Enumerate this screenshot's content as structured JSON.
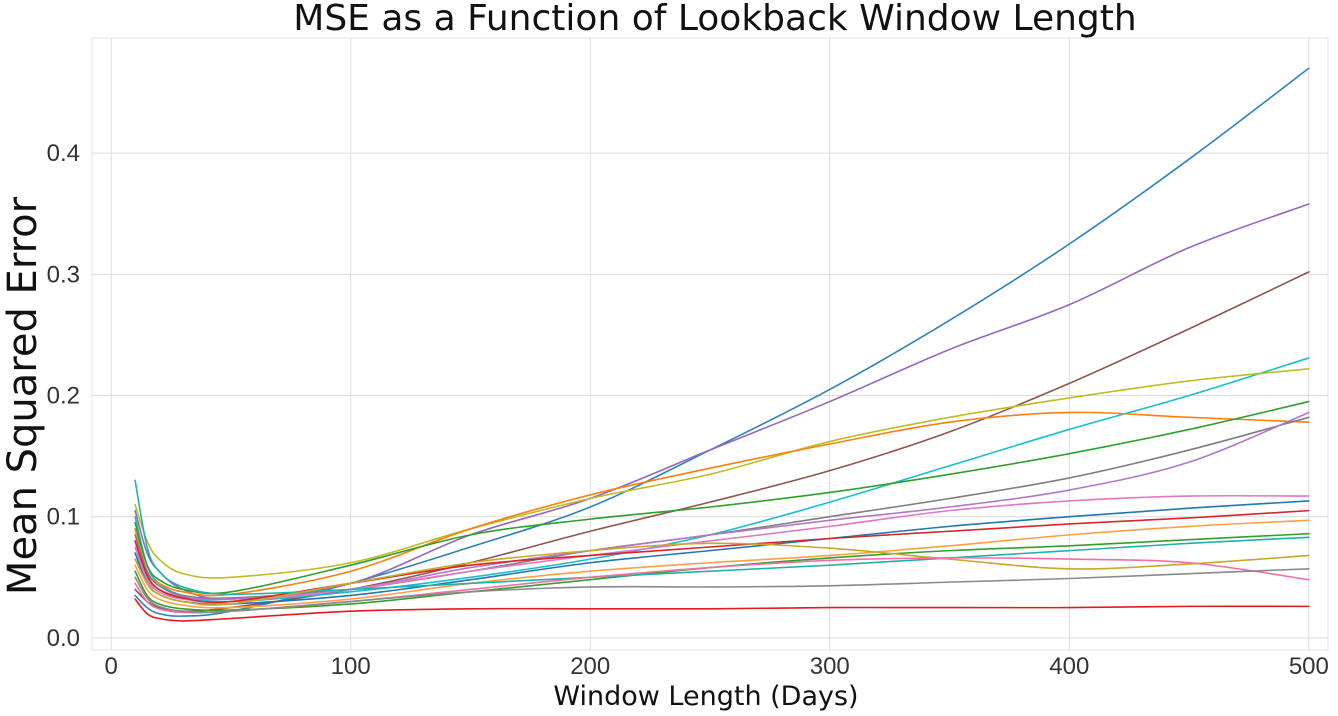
{
  "chart_data": {
    "type": "line",
    "title": "MSE as a Function of Lookback Window Length",
    "xlabel": "Window Length (Days)",
    "ylabel": "Mean Squared Error",
    "xlim": [
      -8,
      508
    ],
    "ylim": [
      -0.01,
      0.495
    ],
    "xticks": [
      0,
      100,
      200,
      300,
      400,
      500
    ],
    "yticks": [
      0.0,
      0.1,
      0.2,
      0.3,
      0.4
    ],
    "xtick_labels": [
      "0",
      "100",
      "200",
      "300",
      "400",
      "500"
    ],
    "ytick_labels": [
      "0.0",
      "0.1",
      "0.2",
      "0.3",
      "0.4"
    ],
    "grid": true,
    "legend": "none",
    "series": [
      {
        "color": "#2b83ba",
        "x": [
          10,
          15,
          20,
          30,
          50,
          100,
          150,
          200,
          250,
          300,
          350,
          400,
          450,
          500
        ],
        "y": [
          0.035,
          0.025,
          0.02,
          0.018,
          0.022,
          0.045,
          0.075,
          0.108,
          0.155,
          0.205,
          0.262,
          0.325,
          0.395,
          0.47
        ]
      },
      {
        "color": "#9467bd",
        "x": [
          10,
          15,
          20,
          30,
          50,
          100,
          150,
          200,
          250,
          300,
          350,
          400,
          450,
          500
        ],
        "y": [
          0.105,
          0.07,
          0.055,
          0.04,
          0.032,
          0.045,
          0.085,
          0.115,
          0.155,
          0.195,
          0.238,
          0.275,
          0.322,
          0.358
        ]
      },
      {
        "color": "#8c564b",
        "x": [
          10,
          15,
          20,
          30,
          50,
          100,
          150,
          200,
          250,
          300,
          350,
          400,
          450,
          500
        ],
        "y": [
          0.04,
          0.03,
          0.025,
          0.022,
          0.025,
          0.04,
          0.062,
          0.088,
          0.112,
          0.138,
          0.17,
          0.21,
          0.255,
          0.302
        ]
      },
      {
        "color": "#17becf",
        "x": [
          10,
          15,
          20,
          30,
          50,
          100,
          150,
          200,
          250,
          300,
          350,
          400,
          450,
          500
        ],
        "y": [
          0.1,
          0.06,
          0.045,
          0.035,
          0.03,
          0.038,
          0.05,
          0.065,
          0.085,
          0.112,
          0.142,
          0.172,
          0.2,
          0.231
        ]
      },
      {
        "color": "#bcbd22",
        "x": [
          10,
          15,
          20,
          30,
          50,
          100,
          150,
          200,
          250,
          300,
          350,
          400,
          450,
          500
        ],
        "y": [
          0.11,
          0.08,
          0.065,
          0.053,
          0.05,
          0.062,
          0.09,
          0.115,
          0.135,
          0.162,
          0.182,
          0.198,
          0.212,
          0.222
        ]
      },
      {
        "color": "#ff7f0e",
        "x": [
          10,
          15,
          20,
          30,
          50,
          100,
          150,
          200,
          250,
          300,
          350,
          400,
          450,
          500
        ],
        "y": [
          0.09,
          0.055,
          0.045,
          0.038,
          0.036,
          0.055,
          0.09,
          0.118,
          0.14,
          0.16,
          0.178,
          0.186,
          0.182,
          0.178
        ]
      },
      {
        "color": "#2ca02c",
        "x": [
          10,
          15,
          20,
          30,
          50,
          100,
          150,
          200,
          250,
          300,
          350,
          400,
          450,
          500
        ],
        "y": [
          0.095,
          0.06,
          0.048,
          0.04,
          0.038,
          0.06,
          0.085,
          0.098,
          0.108,
          0.12,
          0.135,
          0.152,
          0.172,
          0.195
        ]
      },
      {
        "color": "#7f7f7f",
        "x": [
          10,
          15,
          20,
          30,
          50,
          100,
          150,
          200,
          250,
          300,
          350,
          400,
          450,
          500
        ],
        "y": [
          0.085,
          0.055,
          0.043,
          0.035,
          0.033,
          0.04,
          0.055,
          0.072,
          0.085,
          0.1,
          0.115,
          0.132,
          0.155,
          0.182
        ]
      },
      {
        "color": "#b377c9",
        "x": [
          10,
          15,
          20,
          30,
          50,
          100,
          150,
          200,
          250,
          300,
          350,
          400,
          450,
          500
        ],
        "y": [
          0.08,
          0.05,
          0.04,
          0.034,
          0.032,
          0.04,
          0.058,
          0.072,
          0.085,
          0.097,
          0.108,
          0.122,
          0.145,
          0.186
        ]
      },
      {
        "color": "#e377c2",
        "x": [
          10,
          15,
          20,
          30,
          50,
          100,
          150,
          200,
          250,
          300,
          350,
          400,
          450,
          500
        ],
        "y": [
          0.075,
          0.048,
          0.038,
          0.032,
          0.03,
          0.04,
          0.055,
          0.068,
          0.08,
          0.092,
          0.105,
          0.113,
          0.117,
          0.117
        ]
      },
      {
        "color": "#1f77b4",
        "x": [
          10,
          15,
          20,
          30,
          50,
          100,
          150,
          200,
          250,
          300,
          350,
          400,
          450,
          500
        ],
        "y": [
          0.07,
          0.045,
          0.036,
          0.03,
          0.028,
          0.035,
          0.048,
          0.062,
          0.072,
          0.082,
          0.092,
          0.1,
          0.107,
          0.113
        ]
      },
      {
        "color": "#d62728",
        "x": [
          10,
          15,
          20,
          30,
          50,
          100,
          150,
          200,
          250,
          300,
          350,
          400,
          450,
          500
        ],
        "y": [
          0.08,
          0.052,
          0.04,
          0.033,
          0.03,
          0.045,
          0.06,
          0.068,
          0.075,
          0.082,
          0.088,
          0.094,
          0.099,
          0.105
        ]
      },
      {
        "color": "#ff9f43",
        "x": [
          10,
          15,
          20,
          30,
          50,
          100,
          150,
          200,
          250,
          300,
          350,
          400,
          450,
          500
        ],
        "y": [
          0.06,
          0.04,
          0.032,
          0.027,
          0.025,
          0.032,
          0.045,
          0.055,
          0.062,
          0.068,
          0.076,
          0.085,
          0.092,
          0.097
        ]
      },
      {
        "color": "#33a02c",
        "x": [
          10,
          15,
          20,
          30,
          50,
          100,
          150,
          200,
          250,
          300,
          350,
          400,
          450,
          500
        ],
        "y": [
          0.055,
          0.035,
          0.028,
          0.024,
          0.023,
          0.028,
          0.038,
          0.048,
          0.058,
          0.066,
          0.072,
          0.076,
          0.081,
          0.086
        ]
      },
      {
        "color": "#20b2aa",
        "x": [
          10,
          15,
          20,
          30,
          50,
          100,
          150,
          200,
          250,
          300,
          350,
          400,
          450,
          500
        ],
        "y": [
          0.13,
          0.075,
          0.055,
          0.042,
          0.036,
          0.04,
          0.045,
          0.05,
          0.055,
          0.06,
          0.066,
          0.072,
          0.078,
          0.083
        ]
      },
      {
        "color": "#c7a82b",
        "x": [
          10,
          15,
          20,
          30,
          50,
          100,
          150,
          200,
          250,
          300,
          350,
          400,
          450,
          500
        ],
        "y": [
          0.065,
          0.045,
          0.036,
          0.03,
          0.028,
          0.045,
          0.062,
          0.072,
          0.078,
          0.074,
          0.065,
          0.057,
          0.061,
          0.068
        ]
      },
      {
        "color": "#f06eaa",
        "x": [
          10,
          15,
          20,
          30,
          50,
          100,
          150,
          200,
          250,
          300,
          350,
          400,
          450,
          500
        ],
        "y": [
          0.045,
          0.03,
          0.024,
          0.021,
          0.022,
          0.03,
          0.04,
          0.05,
          0.058,
          0.064,
          0.066,
          0.065,
          0.062,
          0.048
        ]
      },
      {
        "color": "#8a8a8a",
        "x": [
          10,
          15,
          20,
          30,
          50,
          100,
          150,
          200,
          250,
          300,
          350,
          400,
          450,
          500
        ],
        "y": [
          0.05,
          0.033,
          0.026,
          0.022,
          0.022,
          0.03,
          0.038,
          0.042,
          0.042,
          0.043,
          0.046,
          0.049,
          0.053,
          0.057
        ]
      },
      {
        "color": "#e41a1c",
        "x": [
          10,
          15,
          20,
          30,
          50,
          100,
          150,
          200,
          250,
          300,
          350,
          400,
          450,
          500
        ],
        "y": [
          0.032,
          0.02,
          0.016,
          0.014,
          0.016,
          0.022,
          0.024,
          0.024,
          0.024,
          0.025,
          0.025,
          0.025,
          0.026,
          0.026
        ]
      }
    ]
  }
}
